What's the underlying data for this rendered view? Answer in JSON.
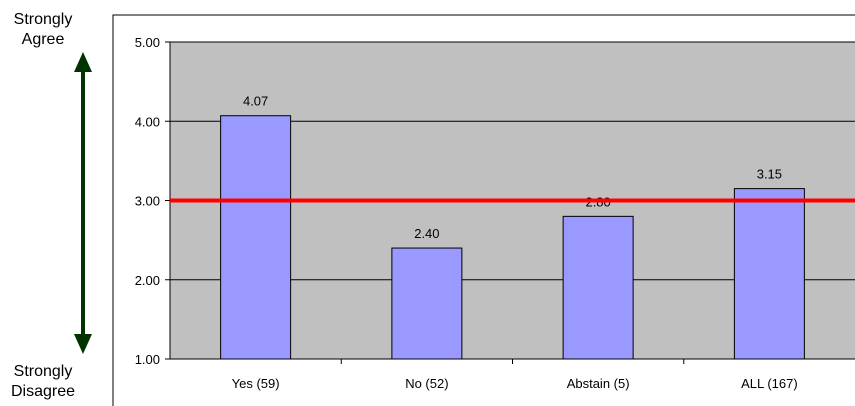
{
  "scale_labels": {
    "top": [
      "Strongly",
      "Agree"
    ],
    "bottom": [
      "Strongly",
      "Disagree"
    ]
  },
  "chart_data": {
    "type": "bar",
    "categories": [
      "Yes (59)",
      "No (52)",
      "Abstain (5)",
      "ALL (167)"
    ],
    "values": [
      4.07,
      2.4,
      2.8,
      3.15
    ],
    "value_labels": [
      "4.07",
      "2.40",
      "2.80",
      "3.15"
    ],
    "ylim": [
      1.0,
      5.0
    ],
    "yticks": [
      1.0,
      2.0,
      3.0,
      4.0,
      5.0
    ],
    "ytick_labels": [
      "1.00",
      "2.00",
      "3.00",
      "4.00",
      "5.00"
    ],
    "reference_line": 3.0,
    "grid": true,
    "colors": {
      "bar": "#9999ff",
      "bar_stroke": "#000000",
      "plot_bg": "#c0c0c0",
      "reference_line": "#ff0000",
      "arrow": "#003300"
    }
  }
}
